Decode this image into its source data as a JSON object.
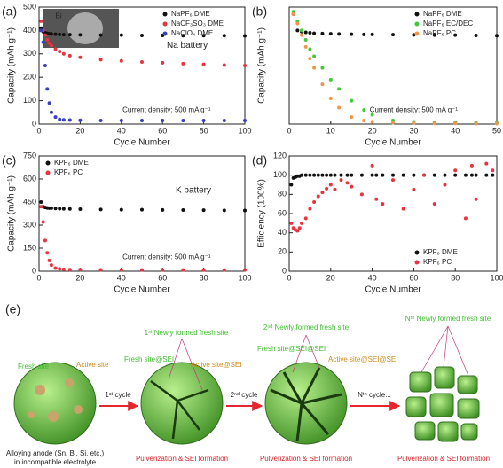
{
  "chart_data": [
    {
      "type": "scatter",
      "label": "(a)",
      "xlabel": "Cycle Number",
      "ylabel": "Capacity (mAh g⁻¹)",
      "xlim": [
        0,
        100
      ],
      "xticks": [
        0,
        20,
        40,
        60,
        80,
        100
      ],
      "ylim": [
        0,
        500
      ],
      "yticks": [
        0,
        100,
        200,
        300,
        400,
        500
      ],
      "legend": "upper right",
      "annotations": [
        "Na battery",
        "Current density: 500 mA g⁻¹",
        "Bi"
      ],
      "x": [
        1,
        2,
        3,
        4,
        5,
        6,
        8,
        10,
        12,
        15,
        20,
        30,
        40,
        50,
        60,
        70,
        80,
        90,
        100
      ],
      "series": [
        {
          "name": "NaPF₆ DME",
          "color": "#111111",
          "values": [
            410,
            395,
            390,
            388,
            386,
            385,
            384,
            383,
            382,
            382,
            381,
            380,
            380,
            379,
            379,
            378,
            378,
            378,
            377
          ]
        },
        {
          "name": "NaCF₃SO₃ DME",
          "color": "#e8333f",
          "values": [
            440,
            400,
            380,
            360,
            345,
            335,
            320,
            310,
            300,
            292,
            285,
            275,
            270,
            265,
            262,
            258,
            255,
            252,
            250
          ]
        },
        {
          "name": "NaClO₄ DME",
          "color": "#3b3fbf",
          "values": [
            400,
            350,
            250,
            150,
            90,
            50,
            30,
            20,
            18,
            17,
            16,
            15,
            15,
            15,
            15,
            15,
            15,
            15,
            15
          ]
        }
      ]
    },
    {
      "type": "scatter",
      "label": "(b)",
      "xlabel": "Cycle Number",
      "ylabel": "Capacity (mAh g⁻¹)",
      "xlim": [
        0,
        50
      ],
      "xticks": [
        0,
        10,
        20,
        30,
        40,
        50
      ],
      "ylim": [
        0,
        500
      ],
      "legend": "upper right",
      "annotations": [
        "Current density: 500 mA g⁻¹"
      ],
      "x": [
        1,
        2,
        3,
        4,
        5,
        6,
        8,
        10,
        12,
        15,
        18,
        20,
        25,
        30,
        35,
        40,
        45,
        50
      ],
      "series": [
        {
          "name": "NaPF₆ DME",
          "color": "#111111",
          "values": [
            470,
            400,
            395,
            392,
            390,
            388,
            387,
            386,
            385,
            384,
            383,
            383,
            382,
            381,
            380,
            380,
            379,
            378
          ]
        },
        {
          "name": "NaPF₆ EC/DEC",
          "color": "#44c83a",
          "values": [
            480,
            440,
            400,
            360,
            320,
            290,
            240,
            190,
            150,
            100,
            60,
            40,
            15,
            10,
            8,
            7,
            6,
            5
          ]
        },
        {
          "name": "NaPF₆ PC",
          "color": "#f0964a",
          "values": [
            470,
            430,
            380,
            330,
            280,
            240,
            170,
            110,
            70,
            30,
            15,
            10,
            5,
            4,
            3,
            3,
            2,
            2
          ]
        }
      ]
    },
    {
      "type": "scatter",
      "label": "(c)",
      "xlabel": "Cycle Number",
      "ylabel": "Capacity (mAh g⁻¹)",
      "xlim": [
        0,
        100
      ],
      "xticks": [
        0,
        20,
        40,
        60,
        80,
        100
      ],
      "ylim": [
        0,
        750
      ],
      "yticks": [
        0,
        150,
        300,
        450,
        600,
        750
      ],
      "legend": "upper left",
      "annotations": [
        "K battery",
        "Current density: 500 mA g⁻¹"
      ],
      "x": [
        1,
        2,
        3,
        4,
        5,
        6,
        8,
        10,
        12,
        15,
        20,
        30,
        40,
        50,
        60,
        70,
        80,
        90,
        100
      ],
      "series": [
        {
          "name": "KPF₆ DME",
          "color": "#111111",
          "values": [
            450,
            420,
            415,
            412,
            410,
            410,
            408,
            407,
            406,
            405,
            404,
            402,
            400,
            400,
            399,
            398,
            397,
            396,
            395
          ]
        },
        {
          "name": "KPF₆ PC",
          "color": "#e8333f",
          "values": [
            420,
            320,
            200,
            120,
            70,
            40,
            20,
            15,
            12,
            10,
            10,
            9,
            9,
            8,
            8,
            8,
            8,
            8,
            8
          ]
        }
      ]
    },
    {
      "type": "scatter",
      "label": "(d)",
      "xlabel": "Cycle Number",
      "ylabel": "Efficiency (100%)",
      "xlim": [
        0,
        100
      ],
      "xticks": [
        0,
        20,
        40,
        60,
        80,
        100
      ],
      "ylim": [
        0,
        120
      ],
      "yticks": [
        0,
        20,
        40,
        60,
        80,
        100,
        120
      ],
      "legend": "lower right",
      "annotations": [],
      "x": [
        1,
        2,
        3,
        4,
        5,
        6,
        8,
        10,
        12,
        14,
        16,
        18,
        20,
        22,
        25,
        28,
        30,
        35,
        40,
        42,
        45,
        50,
        55,
        60,
        65,
        70,
        75,
        80,
        85,
        88,
        90,
        95,
        98
      ],
      "series": [
        {
          "name": "KPF₆ DME",
          "color": "#111111",
          "values": [
            90,
            97,
            98,
            99,
            99,
            100,
            100,
            100,
            100,
            100,
            100,
            100,
            100,
            100,
            100,
            100,
            100,
            100,
            100,
            100,
            100,
            100,
            100,
            100,
            100,
            100,
            100,
            100,
            100,
            100,
            100,
            100,
            100
          ]
        },
        {
          "name": "KPF₆ PC",
          "color": "#e8333f",
          "values": [
            50,
            45,
            43,
            42,
            45,
            50,
            55,
            65,
            72,
            78,
            82,
            86,
            90,
            85,
            95,
            92,
            88,
            80,
            110,
            75,
            70,
            95,
            65,
            85,
            100,
            70,
            90,
            105,
            55,
            110,
            75,
            112,
            105
          ]
        }
      ]
    }
  ],
  "diagram": {
    "label": "(e)",
    "fresh_site": "Fresh site",
    "active_site": "Active site",
    "anode": "Alloying anode (Sn, Bi, Si, etc.)",
    "electrolyte": "in incompatible electrolyte",
    "cycles": [
      "1ˢᵗ cycle",
      "2ⁿᵈ cycle",
      "Nᵗʰ cycle..."
    ],
    "stages": [
      {
        "new_site": "1ˢᵗ Newly formed fresh site",
        "fresh_sei": "Fresh site@SEI",
        "active_sei": "Active site@SEI",
        "result": "Pulverization & SEI formation"
      },
      {
        "new_site": "2ⁿᵈ Newly formed fresh site",
        "fresh_sei": "Fresh site@SEI@SEI",
        "active_sei": "Active site@SEI@SEI",
        "result": "Pulverization & SEI formation"
      },
      {
        "new_site": "Nᵗʰ Newly formed fresh site",
        "result": "Pulverization & SEI formation"
      }
    ]
  }
}
